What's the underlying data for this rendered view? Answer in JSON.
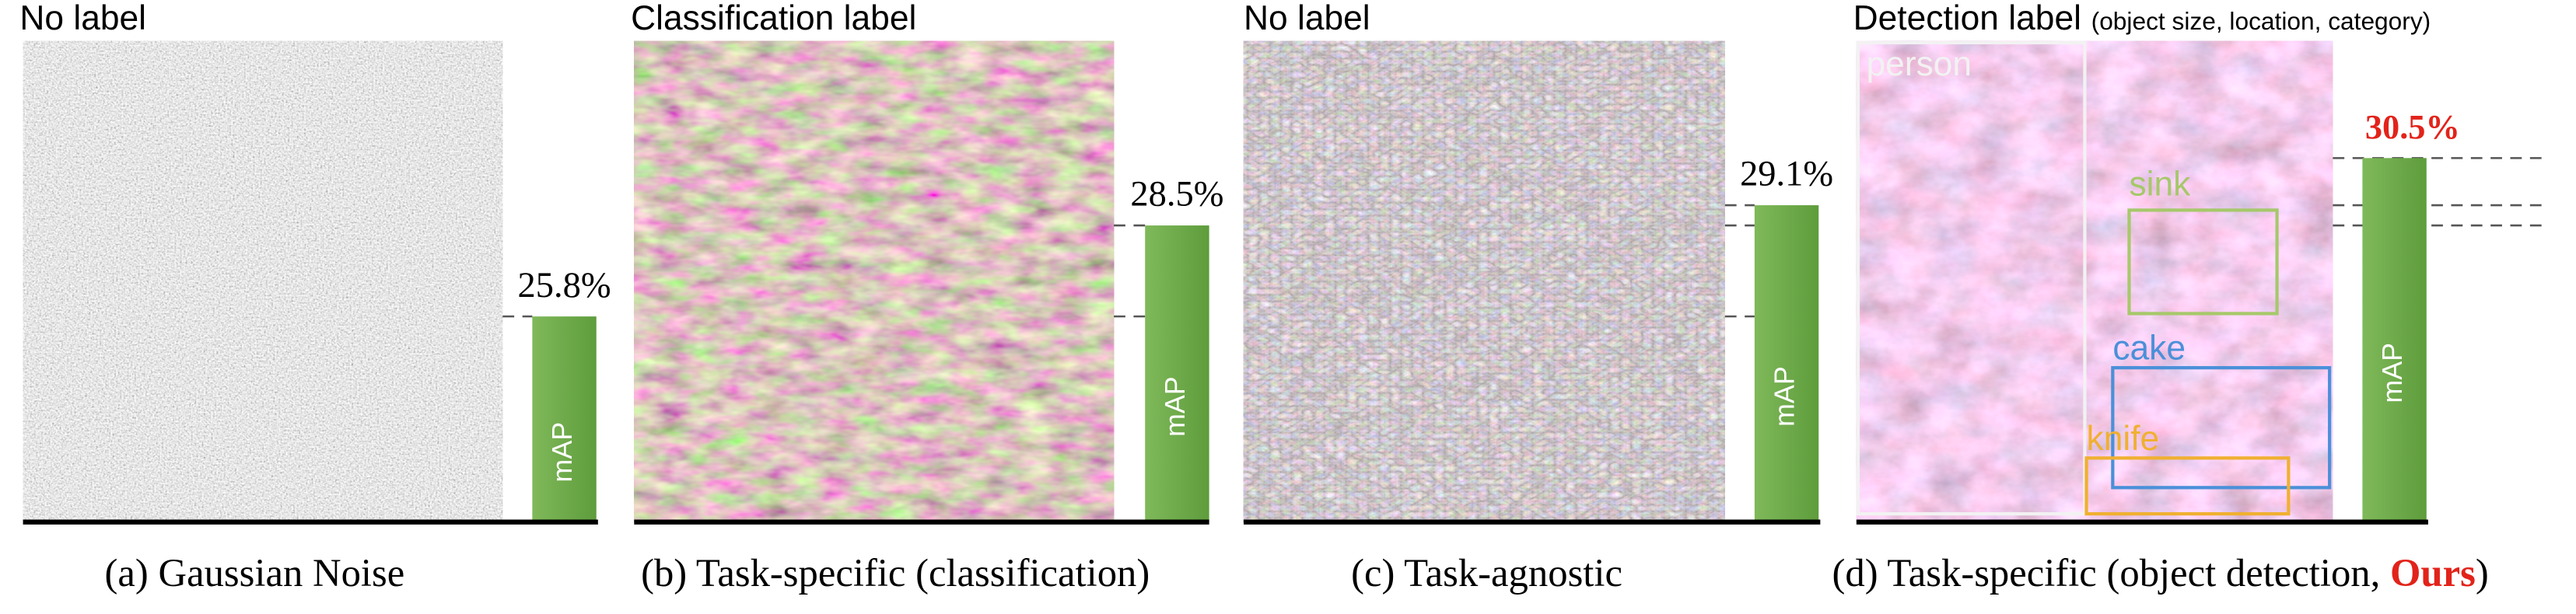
{
  "ylim": [
    19.7,
    31.0
  ],
  "panels": [
    {
      "header": "No label",
      "bar": {
        "label": "mAP",
        "value": 25.8,
        "value_label": "25.8%"
      },
      "caption": [
        "(a)  Gaussian Noise"
      ]
    },
    {
      "header": "Classification label",
      "bar": {
        "label": "mAP",
        "value": 28.5,
        "value_label": "28.5%"
      },
      "caption": [
        "(b) Task-specific (classification)"
      ]
    },
    {
      "header": "No label",
      "bar": {
        "label": "mAP",
        "value": 29.1,
        "value_label": "29.1%"
      },
      "caption": [
        "(c) Task-agnostic"
      ]
    },
    {
      "header": "Detection label",
      "header_note": "(object size, location, category)",
      "bar": {
        "label": "mAP",
        "value": 30.5,
        "value_label": "30.5%"
      },
      "caption": [
        "(d) Task-specific (object detection, ",
        "Ours",
        ")"
      ],
      "boxes": [
        "person",
        "sink",
        "cake",
        "knife"
      ]
    }
  ]
}
